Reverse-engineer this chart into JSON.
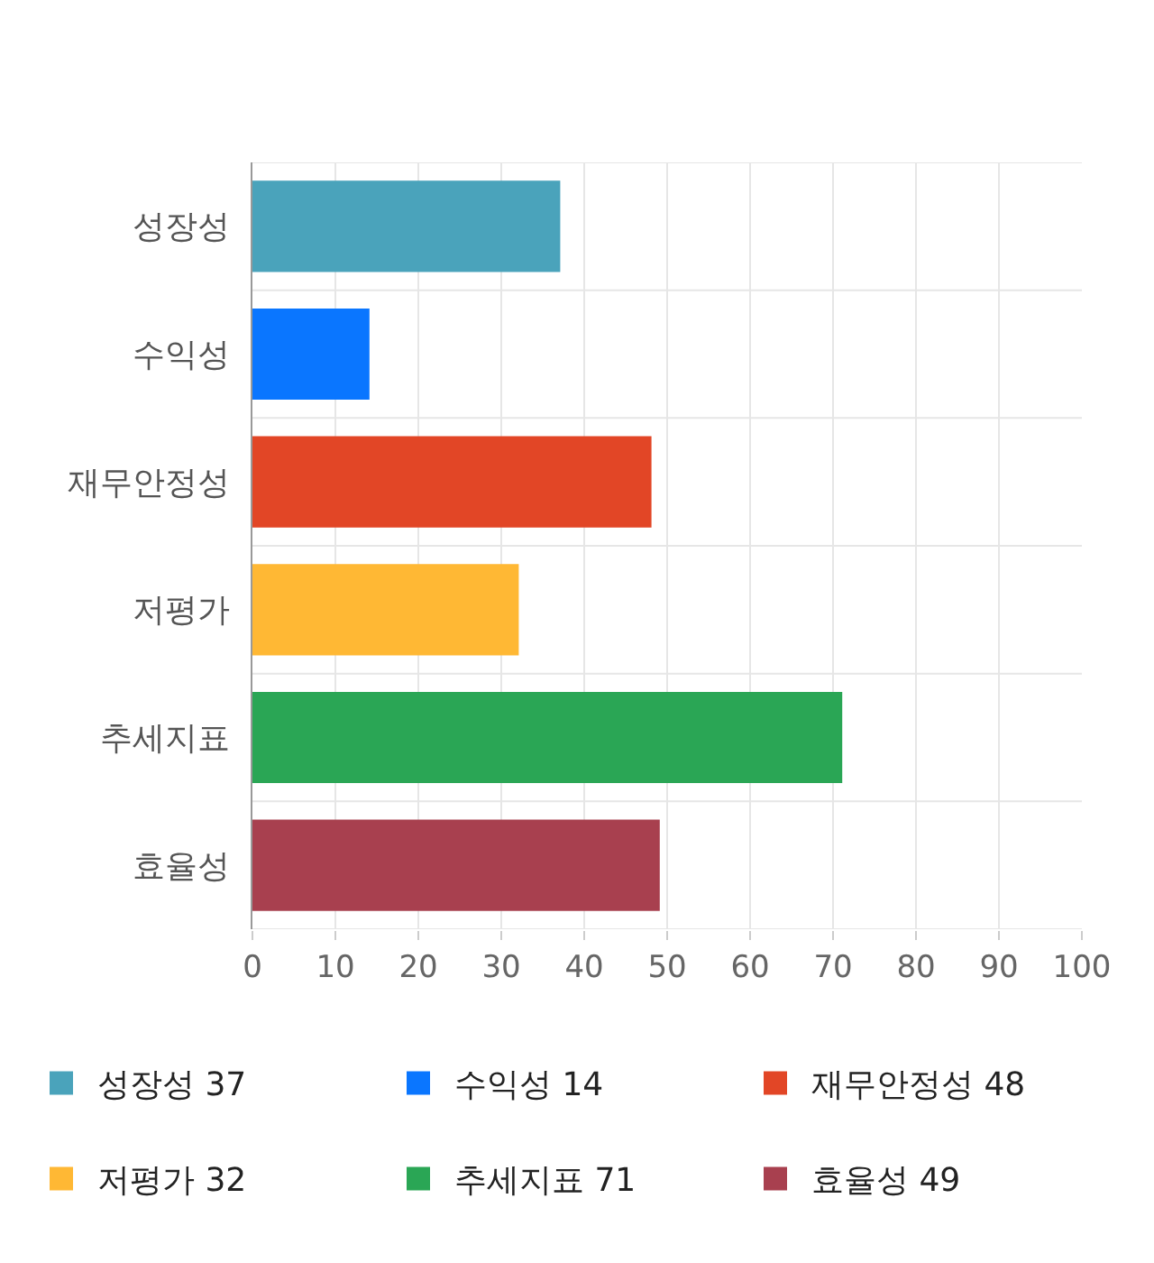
{
  "chart_data": {
    "type": "bar",
    "orientation": "horizontal",
    "categories": [
      "성장성",
      "수익성",
      "재무안정성",
      "저평가",
      "추세지표",
      "효율성"
    ],
    "series": [
      {
        "name": "성장성 37",
        "color": "#4aa3bb",
        "values": [
          37,
          null,
          null,
          null,
          null,
          null
        ]
      },
      {
        "name": "수익성 14",
        "color": "#0a76ff",
        "values": [
          null,
          14,
          null,
          null,
          null,
          null
        ]
      },
      {
        "name": "재무안정성 48",
        "color": "#e24626",
        "values": [
          null,
          null,
          48,
          null,
          null,
          null
        ]
      },
      {
        "name": "저평가 32",
        "color": "#ffb834",
        "values": [
          null,
          null,
          null,
          32,
          null,
          null
        ]
      },
      {
        "name": "추세지표 71",
        "color": "#2aa655",
        "values": [
          null,
          null,
          null,
          null,
          71,
          null
        ]
      },
      {
        "name": "효율성 49",
        "color": "#a8404f",
        "values": [
          null,
          null,
          null,
          null,
          null,
          49
        ]
      }
    ],
    "xlim": [
      0,
      100
    ],
    "xticks": [
      0,
      10,
      20,
      30,
      40,
      50,
      60,
      70,
      80,
      90,
      100
    ],
    "grid": true,
    "legend": "bottom"
  }
}
